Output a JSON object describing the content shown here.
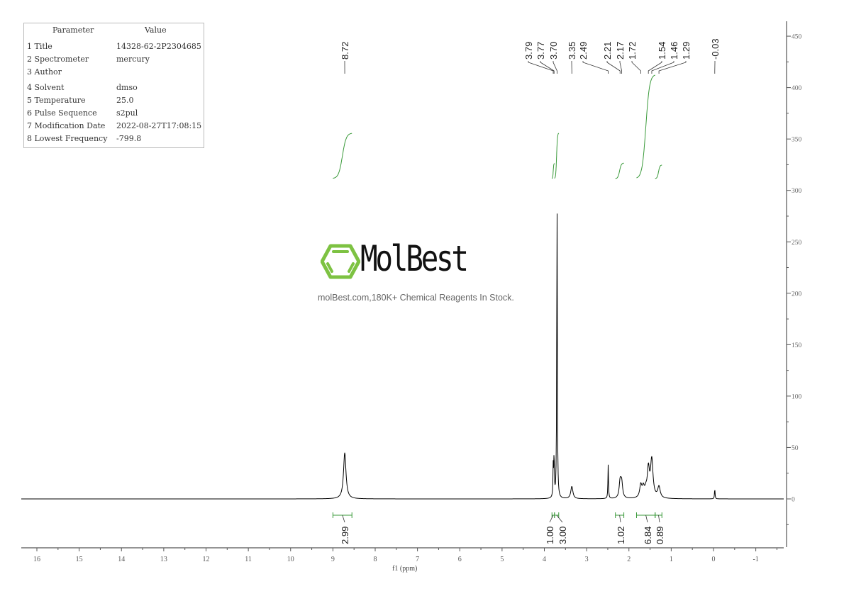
{
  "parameters": {
    "header": [
      "Parameter",
      "Value"
    ],
    "rows": [
      [
        "1 Title",
        "14328-62-2P2304685"
      ],
      [
        "2 Spectrometer",
        "mercury"
      ],
      [
        "3 Author",
        ""
      ],
      [
        "4 Solvent",
        "dmso"
      ],
      [
        "5 Temperature",
        "25.0"
      ],
      [
        "6 Pulse Sequence",
        "s2pul"
      ],
      [
        "7 Modification Date",
        "2022-08-27T17:08:15"
      ],
      [
        "8 Lowest Frequency",
        "-799.8"
      ]
    ]
  },
  "watermark": {
    "brand": "MolBest",
    "tagline": "molBest.com,180K+ Chemical Reagents In Stock.",
    "brand_color": "#7dc242"
  },
  "chart_data": {
    "type": "line",
    "xlabel": "f1 (ppm)",
    "ylabel": "",
    "xlim": [
      16.4,
      -1.7
    ],
    "ylim": [
      -45,
      465
    ],
    "x_ticks": [
      16,
      15,
      14,
      13,
      12,
      11,
      10,
      9,
      8,
      7,
      6,
      5,
      4,
      3,
      2,
      1,
      0,
      -1
    ],
    "y_ticks": [
      0,
      50,
      100,
      150,
      200,
      250,
      300,
      350,
      400,
      450
    ],
    "x_reversed": true,
    "grid": false,
    "spectrum_color": "#000000",
    "integral_color": "#3a9a3a",
    "peaks": [
      {
        "ppm": 8.72,
        "height": 45
      },
      {
        "ppm": 3.79,
        "height": 30
      },
      {
        "ppm": 3.77,
        "height": 40
      },
      {
        "ppm": 3.7,
        "height": 292
      },
      {
        "ppm": 3.35,
        "height": 12
      },
      {
        "ppm": 2.49,
        "height": 33
      },
      {
        "ppm": 2.21,
        "height": 13
      },
      {
        "ppm": 2.17,
        "height": 12
      },
      {
        "ppm": 1.72,
        "height": 12
      },
      {
        "ppm": 1.54,
        "height": 27
      },
      {
        "ppm": 1.46,
        "height": 37
      },
      {
        "ppm": 1.29,
        "height": 11
      },
      {
        "ppm": -0.03,
        "height": 10
      }
    ],
    "peak_labels": [
      "8.72",
      "3.79",
      "3.77",
      "3.70",
      "3.35",
      "2.49",
      "2.21",
      "2.17",
      "1.72",
      "1.54",
      "1.46",
      "1.29",
      "-0.03"
    ],
    "integrals": [
      {
        "from": 9.0,
        "to": 8.55,
        "value": "2.99"
      },
      {
        "from": 3.82,
        "to": 3.76,
        "value": "1.00"
      },
      {
        "from": 3.76,
        "to": 3.66,
        "value": "3.00"
      },
      {
        "from": 2.32,
        "to": 2.12,
        "value": "1.02"
      },
      {
        "from": 1.82,
        "to": 1.38,
        "value": "6.84"
      },
      {
        "from": 1.38,
        "to": 1.22,
        "value": "0.89"
      }
    ]
  }
}
